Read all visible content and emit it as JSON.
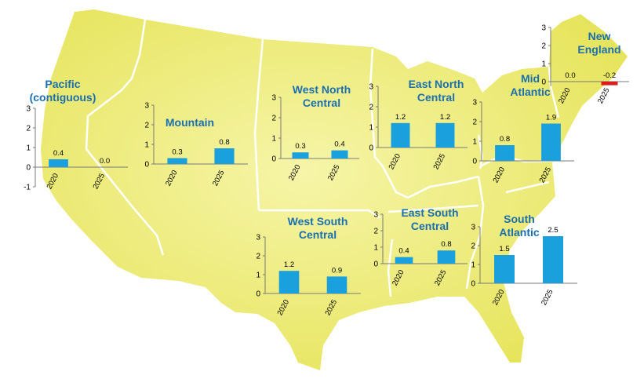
{
  "colors": {
    "land": "#e6e45a",
    "land_highlight": "#f6f5a8",
    "border": "#ffffff",
    "bar_positive": "#1aa0dc",
    "bar_negative": "#dd1c1c",
    "title": "#1a6fb0"
  },
  "chart_data": [
    {
      "type": "bar",
      "title": "Pacific\n(contiguous)",
      "categories": [
        "2020",
        "2025"
      ],
      "values": [
        0.4,
        0.0
      ],
      "value_labels": [
        "0.4",
        "0.0"
      ],
      "yticks": [
        "3",
        "2",
        "1",
        "0",
        "-1"
      ],
      "ylim": [
        -1,
        3
      ]
    },
    {
      "type": "bar",
      "title": "Mountain",
      "categories": [
        "2020",
        "2025"
      ],
      "values": [
        0.3,
        0.8
      ],
      "value_labels": [
        "0.3",
        "0.8"
      ],
      "yticks": [
        "3",
        "2",
        "1",
        "0"
      ],
      "ylim": [
        0,
        3
      ]
    },
    {
      "type": "bar",
      "title": "West North\nCentral",
      "categories": [
        "2020",
        "2025"
      ],
      "values": [
        0.3,
        0.4
      ],
      "value_labels": [
        "0.3",
        "0.4"
      ],
      "yticks": [
        "3",
        "2",
        "1",
        "0"
      ],
      "ylim": [
        0,
        3
      ]
    },
    {
      "type": "bar",
      "title": "East North\nCentral",
      "categories": [
        "2020",
        "2025"
      ],
      "values": [
        1.2,
        1.2
      ],
      "value_labels": [
        "1.2",
        "1.2"
      ],
      "yticks": [
        "3",
        "2",
        "1",
        "0"
      ],
      "ylim": [
        0,
        3
      ]
    },
    {
      "type": "bar",
      "title": "Mid\nAtlantic",
      "categories": [
        "2020",
        "2025"
      ],
      "values": [
        0.8,
        1.9
      ],
      "value_labels": [
        "0.8",
        "1.9"
      ],
      "yticks": [
        "3",
        "2",
        "1",
        "0"
      ],
      "ylim": [
        0,
        3
      ]
    },
    {
      "type": "bar",
      "title": "New\nEngland",
      "categories": [
        "2020",
        "2025"
      ],
      "values": [
        0.0,
        -0.2
      ],
      "value_labels": [
        "0.0",
        "-0.2"
      ],
      "yticks": [
        "3",
        "2",
        "1",
        "0"
      ],
      "ylim": [
        -0.25,
        3
      ]
    },
    {
      "type": "bar",
      "title": "West South\nCentral",
      "categories": [
        "2020",
        "2025"
      ],
      "values": [
        1.2,
        0.9
      ],
      "value_labels": [
        "1.2",
        "0.9"
      ],
      "yticks": [
        "3",
        "2",
        "1",
        "0"
      ],
      "ylim": [
        0,
        3
      ]
    },
    {
      "type": "bar",
      "title": "East South\nCentral",
      "categories": [
        "2020",
        "2025"
      ],
      "values": [
        0.4,
        0.8
      ],
      "value_labels": [
        "0.4",
        "0.8"
      ],
      "yticks": [
        "3",
        "2",
        "1",
        "0"
      ],
      "ylim": [
        0,
        3
      ]
    },
    {
      "type": "bar",
      "title": "South\nAtlantic",
      "categories": [
        "2020",
        "2025"
      ],
      "values": [
        1.5,
        2.5
      ],
      "value_labels": [
        "1.5",
        "2.5"
      ],
      "yticks": [
        "3",
        "2",
        "1",
        "0"
      ],
      "ylim": [
        0,
        3
      ]
    }
  ]
}
